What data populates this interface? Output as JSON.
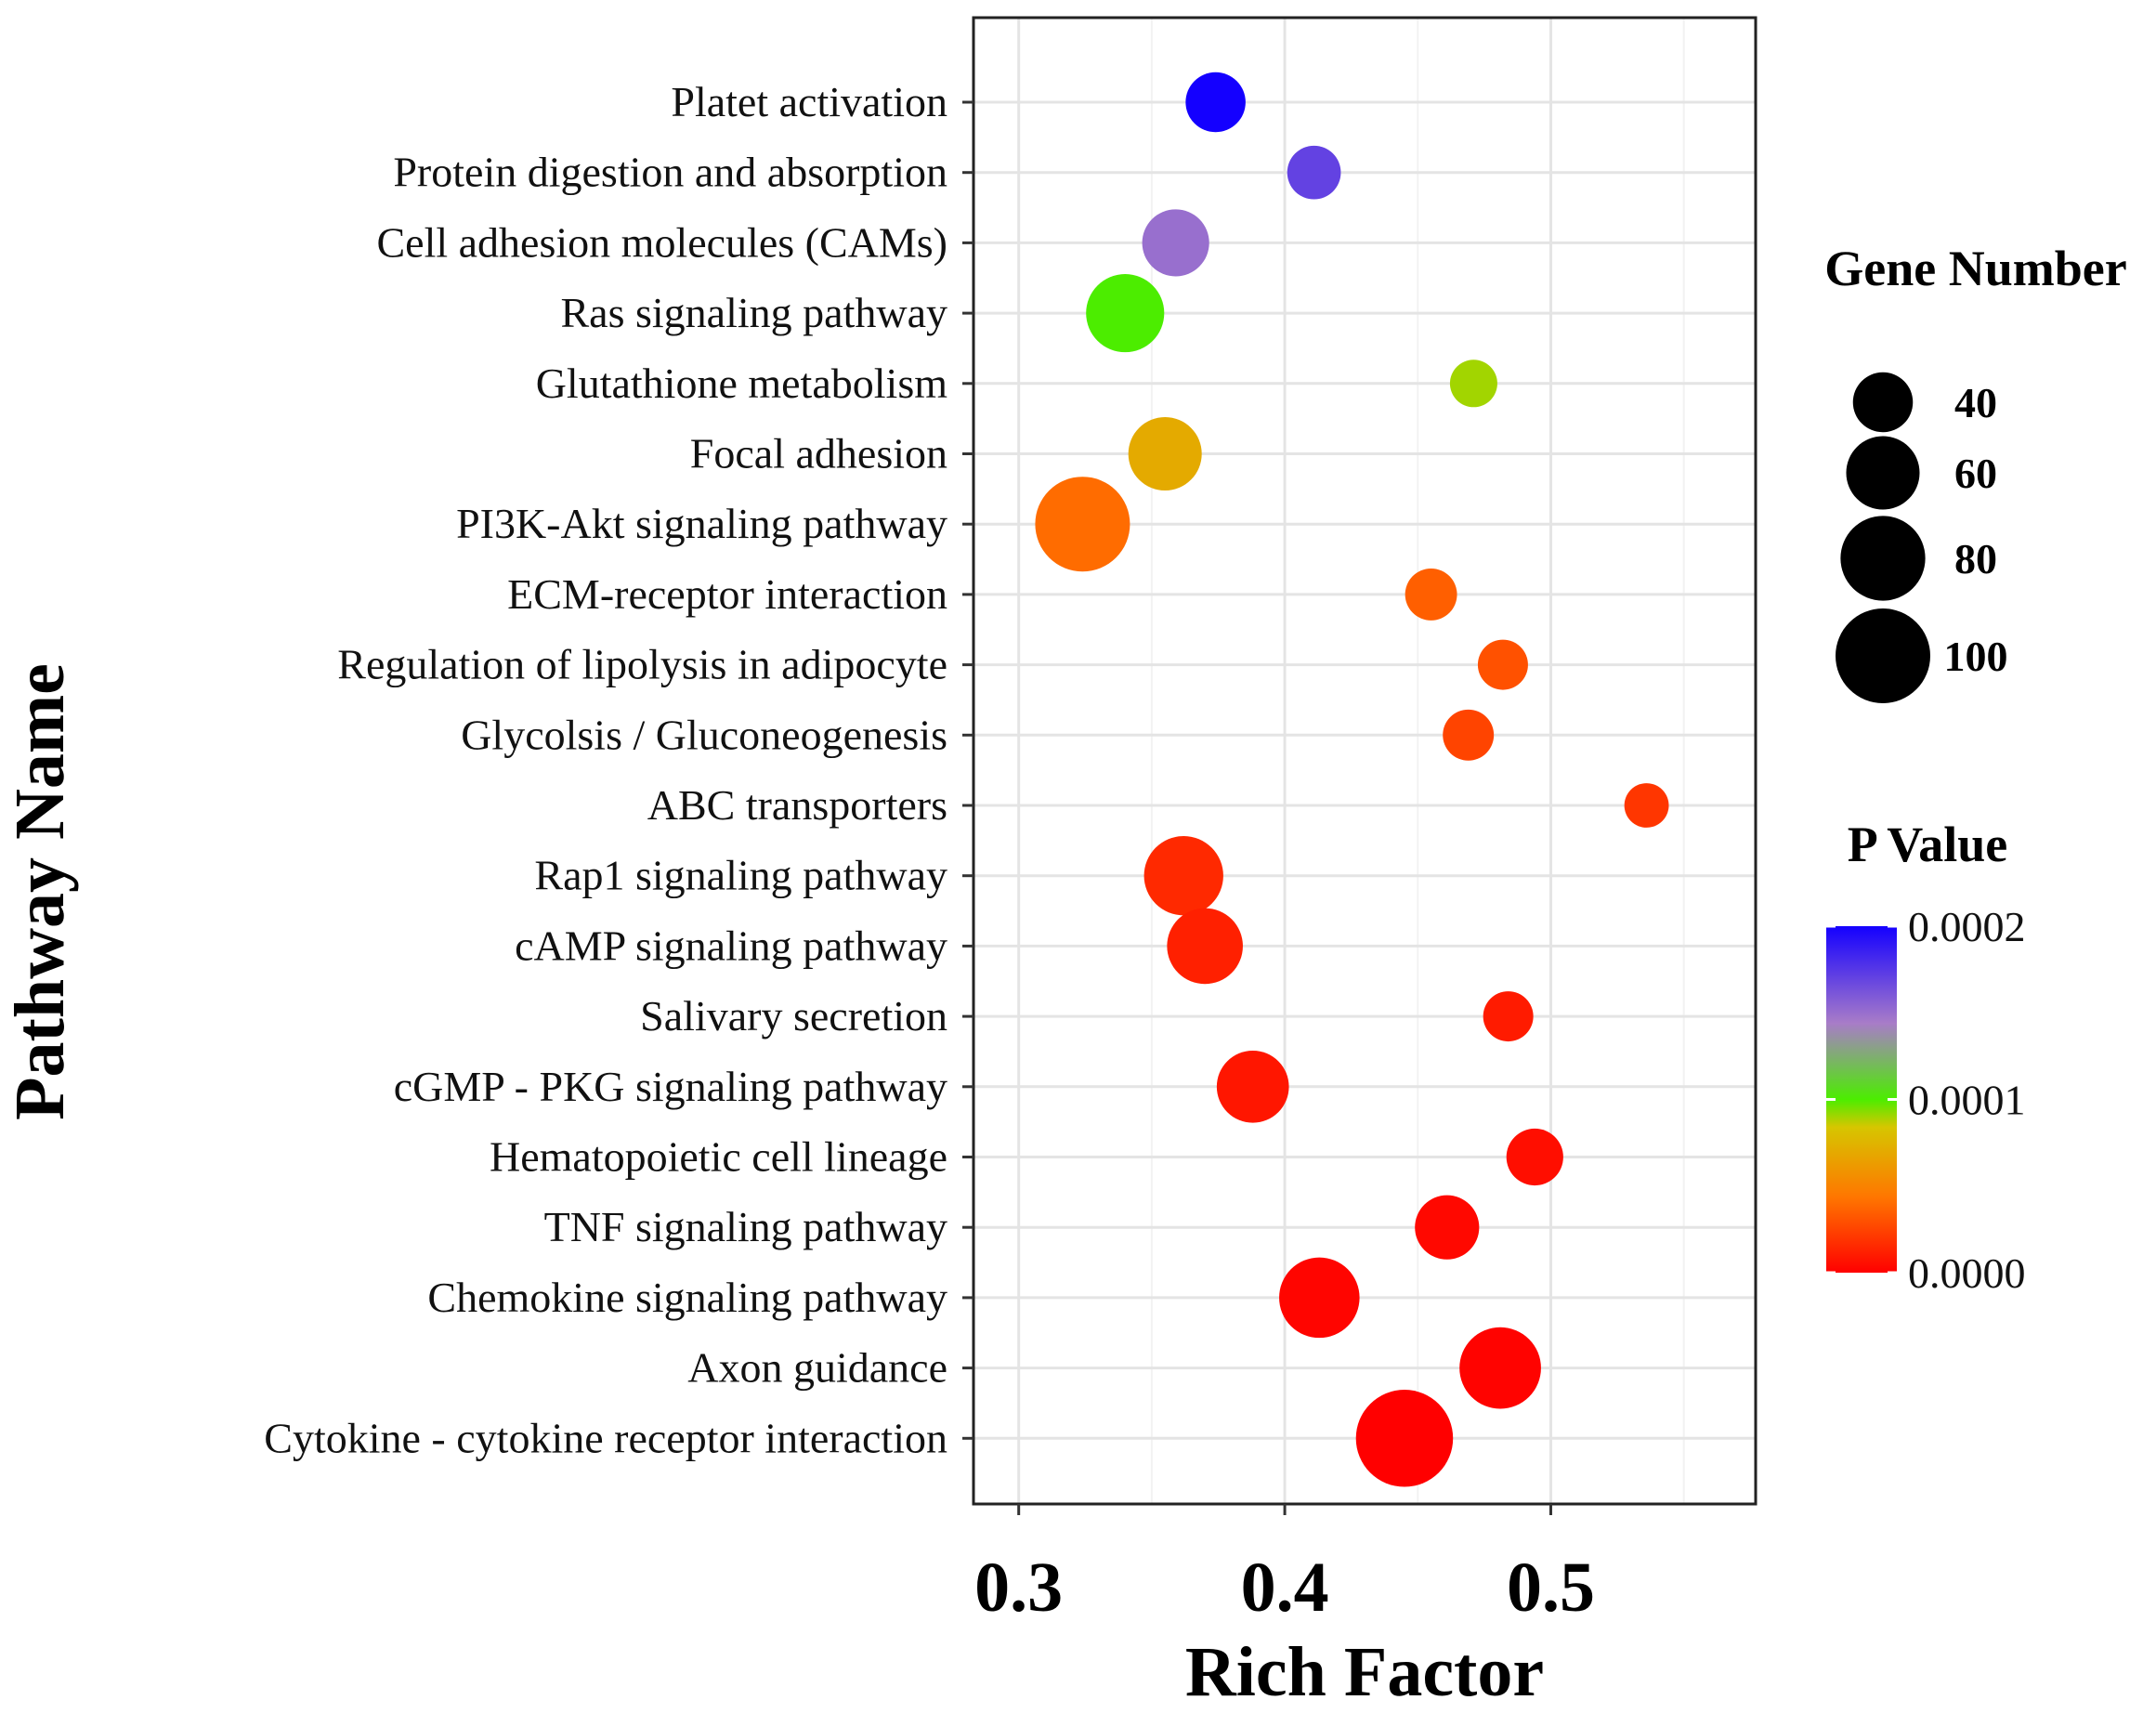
{
  "chart_data": {
    "type": "scatter",
    "title": "",
    "xlabel": "Rich Factor",
    "ylabel": "Pathway Name",
    "xlim": [
      0.283,
      0.577
    ],
    "xticks": [
      0.3,
      0.4,
      0.5
    ],
    "xtick_labels": [
      "0.3",
      "0.4",
      "0.5"
    ],
    "grid": true,
    "points": [
      {
        "pathway": "Platet activation",
        "rich_factor": 0.374,
        "gene_number": 40,
        "p_value": 0.0002
      },
      {
        "pathway": "Protein digestion and absorption",
        "rich_factor": 0.411,
        "gene_number": 32,
        "p_value": 0.00017
      },
      {
        "pathway": "Cell adhesion molecules (CAMs)",
        "rich_factor": 0.359,
        "gene_number": 50,
        "p_value": 0.00015
      },
      {
        "pathway": "Ras signaling pathway",
        "rich_factor": 0.34,
        "gene_number": 68,
        "p_value": 0.0001
      },
      {
        "pathway": "Glutathione metabolism",
        "rich_factor": 0.471,
        "gene_number": 25,
        "p_value": 9e-05
      },
      {
        "pathway": "Focal adhesion",
        "rich_factor": 0.355,
        "gene_number": 60,
        "p_value": 7e-05
      },
      {
        "pathway": "PI3K-Akt signaling pathway",
        "rich_factor": 0.324,
        "gene_number": 100,
        "p_value": 4e-05
      },
      {
        "pathway": "ECM-receptor interaction",
        "rich_factor": 0.455,
        "gene_number": 30,
        "p_value": 3.5e-05
      },
      {
        "pathway": "Regulation of lipolysis in adipocyte",
        "rich_factor": 0.482,
        "gene_number": 28,
        "p_value": 3e-05
      },
      {
        "pathway": "Glycolsis / Gluconeogenesis",
        "rich_factor": 0.469,
        "gene_number": 29,
        "p_value": 2.5e-05
      },
      {
        "pathway": "ABC transporters",
        "rich_factor": 0.536,
        "gene_number": 22,
        "p_value": 2e-05
      },
      {
        "pathway": "Rap1 signaling pathway",
        "rich_factor": 0.362,
        "gene_number": 70,
        "p_value": 1.5e-05
      },
      {
        "pathway": "cAMP signaling pathway",
        "rich_factor": 0.37,
        "gene_number": 64,
        "p_value": 1.2e-05
      },
      {
        "pathway": "Salivary secretion",
        "rich_factor": 0.484,
        "gene_number": 28,
        "p_value": 1e-05
      },
      {
        "pathway": "cGMP - PKG signaling pathway",
        "rich_factor": 0.388,
        "gene_number": 58,
        "p_value": 8e-06
      },
      {
        "pathway": "Hematopoietic cell lineage",
        "rich_factor": 0.494,
        "gene_number": 36,
        "p_value": 5e-06
      },
      {
        "pathway": "TNF signaling pathway",
        "rich_factor": 0.461,
        "gene_number": 46,
        "p_value": 3e-06
      },
      {
        "pathway": "Chemokine signaling pathway",
        "rich_factor": 0.413,
        "gene_number": 72,
        "p_value": 2e-06
      },
      {
        "pathway": "Axon guidance",
        "rich_factor": 0.481,
        "gene_number": 74,
        "p_value": 1e-06
      },
      {
        "pathway": "Cytokine - cytokine receptor interaction",
        "rich_factor": 0.445,
        "gene_number": 105,
        "p_value": 0.0
      }
    ],
    "size_legend": {
      "title": "Gene Number",
      "values": [
        40,
        60,
        80,
        100
      ],
      "labels": [
        "40",
        "60",
        "80",
        "100"
      ]
    },
    "color_legend": {
      "title": "P Value",
      "range": [
        0.0,
        0.0002
      ],
      "labels": [
        "0.0002",
        "0.0001",
        "0.0000"
      ],
      "colors": [
        "#ff0000",
        "#ff7700",
        "#d6c600",
        "#4ced00",
        "#a87cc8",
        "#1400ff"
      ]
    }
  }
}
